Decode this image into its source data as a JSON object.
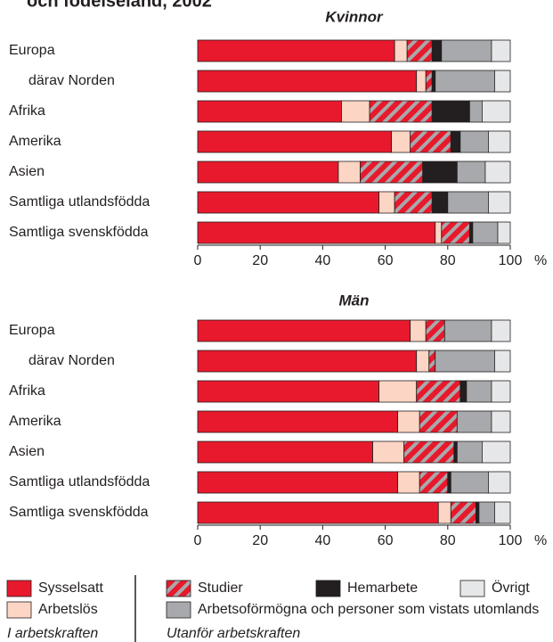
{
  "header": "och födelseland, 2002",
  "chart_data": [
    {
      "type": "stacked-bar-horizontal",
      "title": "Kvinnor",
      "categories": [
        "Europa",
        "därav Norden",
        "Afrika",
        "Amerika",
        "Asien",
        "Samtliga utlandsfödda",
        "Samtliga svenskfödda"
      ],
      "series": [
        {
          "name": "Sysselsatt",
          "color": "#e8192c",
          "values": [
            63,
            70,
            46,
            62,
            45,
            58,
            76
          ]
        },
        {
          "name": "Arbetslös",
          "color": "#fcd5c4",
          "values": [
            4,
            3,
            9,
            6,
            7,
            5,
            2
          ]
        },
        {
          "name": "Studier",
          "color": "#e8192c",
          "hatch": "#a7a9ac",
          "values": [
            8,
            2,
            20,
            13,
            20,
            12,
            9
          ]
        },
        {
          "name": "Hemarbete",
          "color": "#231f20",
          "values": [
            3,
            1,
            12,
            3,
            11,
            5,
            1
          ]
        },
        {
          "name": "Arbetsoförmögna och personer som vistats utomlands",
          "color": "#a7a9ac",
          "values": [
            16,
            19,
            4,
            9,
            9,
            13,
            8
          ]
        },
        {
          "name": "Övrigt",
          "color": "#e6e7e8",
          "values": [
            6,
            5,
            9,
            7,
            8,
            7,
            4
          ]
        }
      ],
      "xlim": [
        0,
        100
      ],
      "xticks": [
        0,
        20,
        40,
        60,
        80,
        100
      ],
      "xlabel": "%"
    },
    {
      "type": "stacked-bar-horizontal",
      "title": "Män",
      "categories": [
        "Europa",
        "därav Norden",
        "Afrika",
        "Amerika",
        "Asien",
        "Samtliga utlandsfödda",
        "Samtliga svenskfödda"
      ],
      "series": [
        {
          "name": "Sysselsatt",
          "color": "#e8192c",
          "values": [
            68,
            70,
            58,
            64,
            56,
            64,
            77
          ]
        },
        {
          "name": "Arbetslös",
          "color": "#fcd5c4",
          "values": [
            5,
            4,
            12,
            7,
            10,
            7,
            4
          ]
        },
        {
          "name": "Studier",
          "color": "#e8192c",
          "hatch": "#a7a9ac",
          "values": [
            6,
            2,
            14,
            12,
            16,
            9,
            8
          ]
        },
        {
          "name": "Hemarbete",
          "color": "#231f20",
          "values": [
            0,
            0,
            2,
            0,
            1,
            1,
            1
          ]
        },
        {
          "name": "Arbetsoförmögna och personer som vistats utomlands",
          "color": "#a7a9ac",
          "values": [
            15,
            19,
            8,
            11,
            8,
            12,
            5
          ]
        },
        {
          "name": "Övrigt",
          "color": "#e6e7e8",
          "values": [
            6,
            5,
            6,
            6,
            9,
            7,
            5
          ]
        }
      ],
      "xlim": [
        0,
        100
      ],
      "xticks": [
        0,
        20,
        40,
        60,
        80,
        100
      ],
      "xlabel": "%"
    }
  ],
  "legend": {
    "groups": [
      "I arbetskraften",
      "Utanför arbetskraften"
    ]
  }
}
